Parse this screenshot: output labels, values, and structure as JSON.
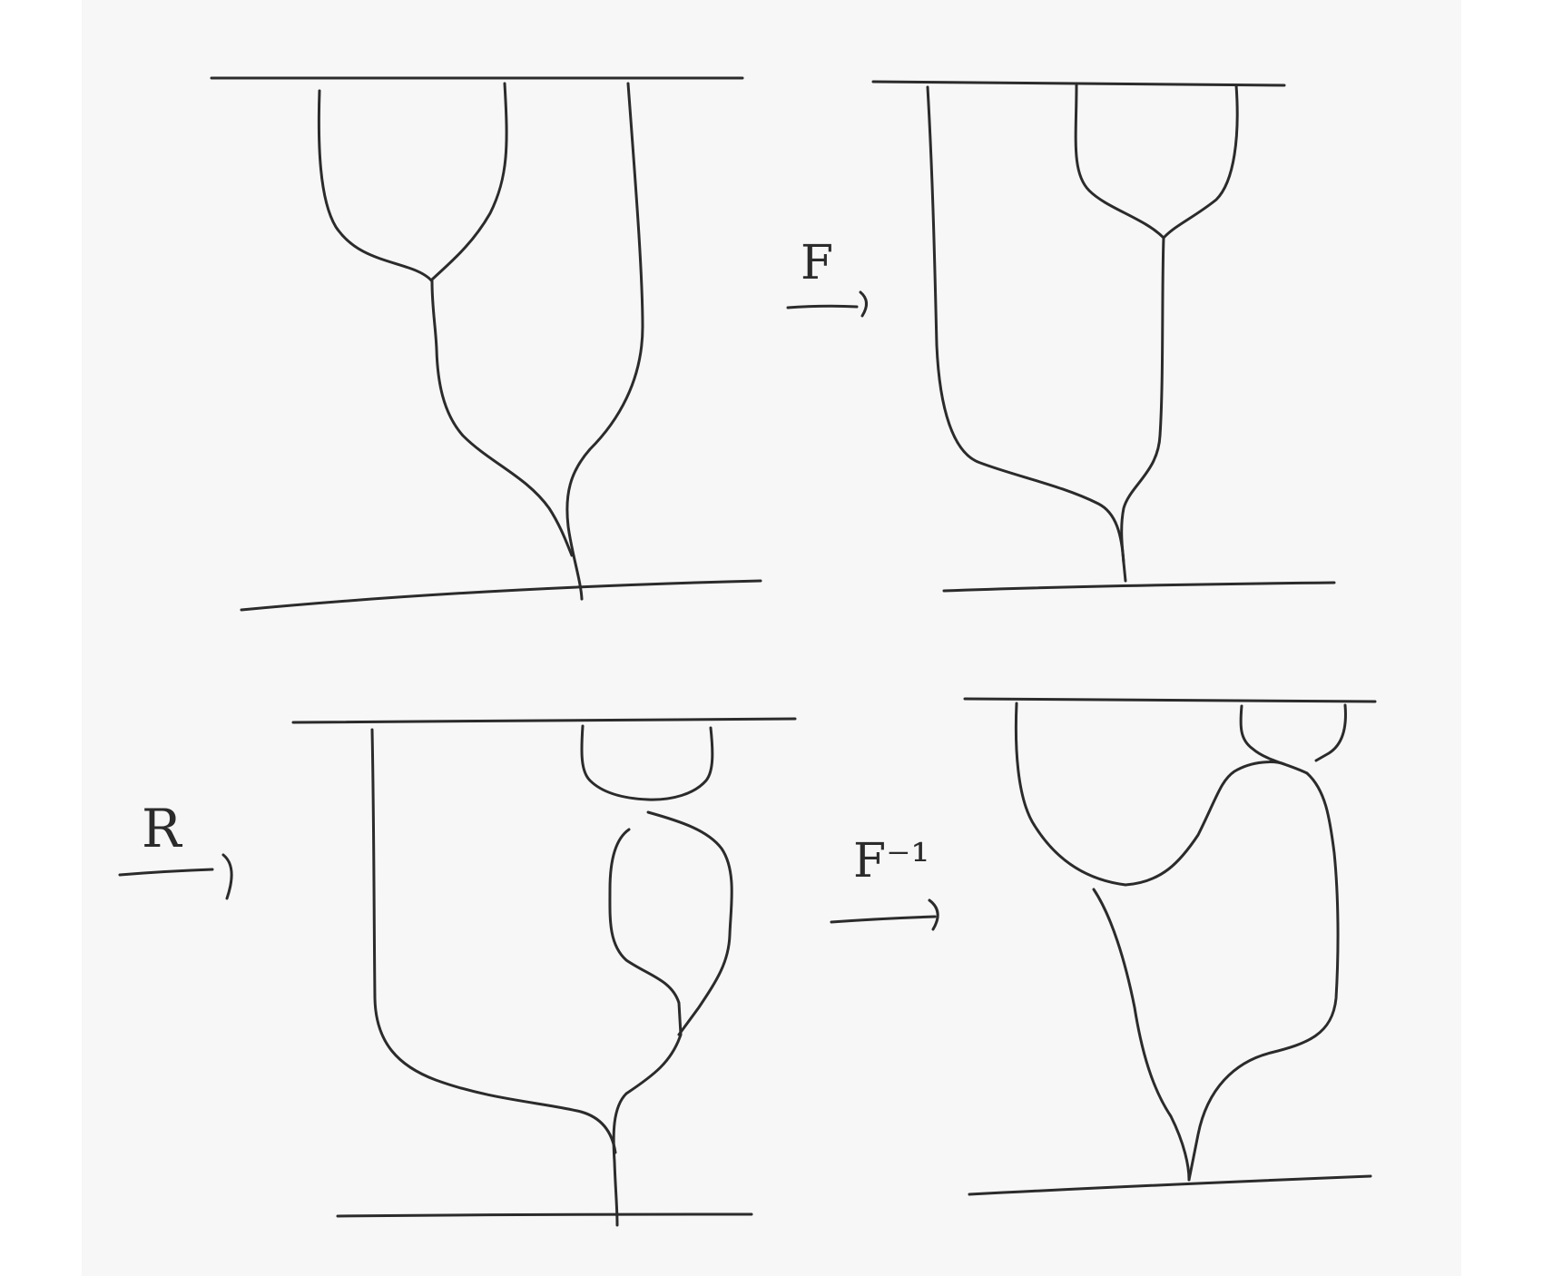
{
  "ink_color": "#2b2b2b",
  "paper_color": "#f7f7f7",
  "labels": {
    "f": "F",
    "r": "R",
    "f_inverse": "F⁻¹"
  }
}
